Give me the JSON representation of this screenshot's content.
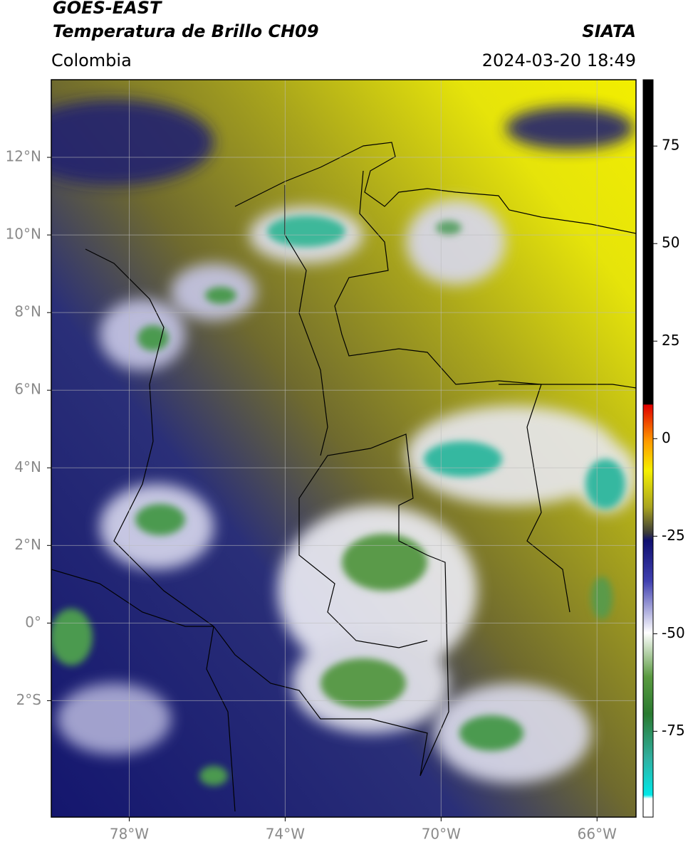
{
  "chart_data": {
    "type": "map",
    "title": "GOES-EAST",
    "subtitle": "Temperatura de Brillo CH09",
    "region": "Colombia",
    "source": "SIATA",
    "datetime": "2024-03-20 18:49",
    "xlim": [
      -80,
      -65
    ],
    "ylim": [
      -5,
      14
    ],
    "xticks": [
      {
        "value": -78,
        "label": "78°W"
      },
      {
        "value": -74,
        "label": "74°W"
      },
      {
        "value": -70,
        "label": "70°W"
      },
      {
        "value": -66,
        "label": "66°W"
      }
    ],
    "yticks": [
      {
        "value": 12,
        "label": "12°N"
      },
      {
        "value": 10,
        "label": "10°N"
      },
      {
        "value": 8,
        "label": "8°N"
      },
      {
        "value": 6,
        "label": "6°N"
      },
      {
        "value": 4,
        "label": "4°N"
      },
      {
        "value": 2,
        "label": "2°N"
      },
      {
        "value": 0,
        "label": "0°"
      },
      {
        "value": -2,
        "label": "2°S"
      }
    ],
    "grid": true,
    "colorbar": {
      "lim": [
        -97,
        92
      ],
      "ticks": [
        -75,
        -50,
        -25,
        0,
        25,
        50,
        75
      ]
    }
  }
}
